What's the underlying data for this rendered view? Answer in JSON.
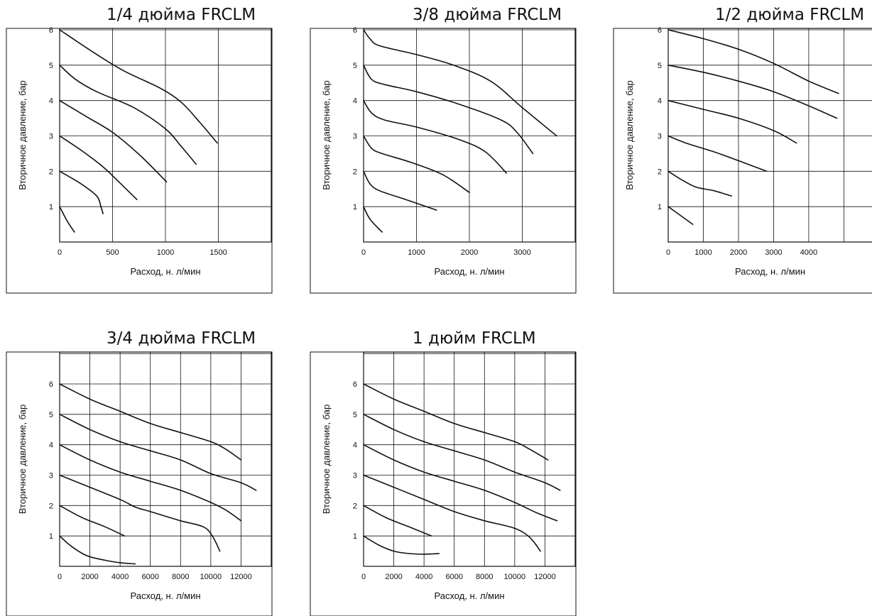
{
  "chart_data": [
    {
      "type": "line",
      "title": "1/4 дюйма FRCLM",
      "xlabel": "Расход, н. л/мин",
      "ylabel": "Вторичное давление, бар",
      "xlim": [
        0,
        2000
      ],
      "ylim": [
        0,
        6
      ],
      "x_ticks": [
        "0",
        "500",
        "1000",
        "1500"
      ],
      "y_ticks": [
        "1",
        "2",
        "3",
        "4",
        "5",
        "6"
      ],
      "grid": true,
      "series": [
        {
          "points": [
            [
              0,
              1.0
            ],
            [
              70,
              0.6
            ],
            [
              140,
              0.28
            ]
          ]
        },
        {
          "points": [
            [
              0,
              2.0
            ],
            [
              200,
              1.65
            ],
            [
              350,
              1.3
            ],
            [
              390,
              1.0
            ],
            [
              410,
              0.8
            ]
          ]
        },
        {
          "points": [
            [
              0,
              3.0
            ],
            [
              200,
              2.6
            ],
            [
              400,
              2.15
            ],
            [
              560,
              1.7
            ],
            [
              730,
              1.2
            ]
          ]
        },
        {
          "points": [
            [
              0,
              4.0
            ],
            [
              250,
              3.55
            ],
            [
              500,
              3.1
            ],
            [
              760,
              2.45
            ],
            [
              1010,
              1.7
            ]
          ]
        },
        {
          "points": [
            [
              0,
              5.0
            ],
            [
              150,
              4.6
            ],
            [
              350,
              4.25
            ],
            [
              700,
              3.8
            ],
            [
              1000,
              3.2
            ],
            [
              1150,
              2.7
            ],
            [
              1290,
              2.2
            ]
          ]
        },
        {
          "points": [
            [
              0,
              6.0
            ],
            [
              300,
              5.4
            ],
            [
              600,
              4.85
            ],
            [
              950,
              4.35
            ],
            [
              1150,
              3.95
            ],
            [
              1320,
              3.4
            ],
            [
              1490,
              2.8
            ]
          ]
        }
      ]
    },
    {
      "type": "line",
      "title": "3/8 дюйма FRCLM",
      "xlabel": "Расход, н. л/мин",
      "ylabel": "Вторичное давление, бар",
      "xlim": [
        0,
        4000
      ],
      "ylim": [
        0,
        6
      ],
      "x_ticks": [
        "0",
        "1000",
        "2000",
        "3000"
      ],
      "y_ticks": [
        "1",
        "2",
        "3",
        "4",
        "5",
        "6"
      ],
      "grid": true,
      "series": [
        {
          "points": [
            [
              0,
              1.0
            ],
            [
              120,
              0.65
            ],
            [
              350,
              0.28
            ]
          ]
        },
        {
          "points": [
            [
              0,
              2.0
            ],
            [
              120,
              1.65
            ],
            [
              300,
              1.45
            ],
            [
              800,
              1.2
            ],
            [
              1380,
              0.9
            ]
          ]
        },
        {
          "points": [
            [
              0,
              3.0
            ],
            [
              150,
              2.65
            ],
            [
              350,
              2.5
            ],
            [
              900,
              2.25
            ],
            [
              1500,
              1.9
            ],
            [
              2000,
              1.4
            ]
          ]
        },
        {
          "points": [
            [
              0,
              4.0
            ],
            [
              150,
              3.65
            ],
            [
              400,
              3.45
            ],
            [
              1000,
              3.25
            ],
            [
              1800,
              2.9
            ],
            [
              2300,
              2.55
            ],
            [
              2700,
              1.95
            ]
          ]
        },
        {
          "points": [
            [
              0,
              5.0
            ],
            [
              150,
              4.6
            ],
            [
              400,
              4.45
            ],
            [
              1000,
              4.25
            ],
            [
              1800,
              3.9
            ],
            [
              2600,
              3.45
            ],
            [
              2900,
              3.1
            ],
            [
              3200,
              2.5
            ]
          ]
        },
        {
          "points": [
            [
              0,
              6.0
            ],
            [
              120,
              5.75
            ],
            [
              300,
              5.55
            ],
            [
              1000,
              5.3
            ],
            [
              1700,
              5.0
            ],
            [
              2400,
              4.55
            ],
            [
              3000,
              3.8
            ],
            [
              3650,
              3.0
            ]
          ]
        }
      ]
    },
    {
      "type": "line",
      "title": "1/2 дюйма FRCLM",
      "xlabel": "Расход, н. л/мин",
      "ylabel": "Вторичное давление, бар",
      "xlim": [
        0,
        5800
      ],
      "ylim": [
        0,
        6
      ],
      "x_ticks": [
        "0",
        "1000",
        "2000",
        "3000",
        "4000"
      ],
      "y_ticks": [
        "1",
        "2",
        "3",
        "4",
        "5",
        "6"
      ],
      "grid": true,
      "series": [
        {
          "points": [
            [
              0,
              1.0
            ],
            [
              350,
              0.75
            ],
            [
              700,
              0.5
            ]
          ]
        },
        {
          "points": [
            [
              0,
              2.0
            ],
            [
              400,
              1.75
            ],
            [
              800,
              1.55
            ],
            [
              1300,
              1.45
            ],
            [
              1800,
              1.3
            ]
          ]
        },
        {
          "points": [
            [
              0,
              3.0
            ],
            [
              500,
              2.8
            ],
            [
              1300,
              2.55
            ],
            [
              2000,
              2.3
            ],
            [
              2800,
              2.0
            ]
          ]
        },
        {
          "points": [
            [
              0,
              4.0
            ],
            [
              1000,
              3.75
            ],
            [
              2000,
              3.5
            ],
            [
              3000,
              3.15
            ],
            [
              3650,
              2.8
            ]
          ]
        },
        {
          "points": [
            [
              0,
              5.0
            ],
            [
              1000,
              4.8
            ],
            [
              2000,
              4.55
            ],
            [
              3000,
              4.25
            ],
            [
              4000,
              3.85
            ],
            [
              4800,
              3.5
            ]
          ]
        },
        {
          "points": [
            [
              0,
              6.0
            ],
            [
              1000,
              5.75
            ],
            [
              2000,
              5.45
            ],
            [
              3000,
              5.05
            ],
            [
              4000,
              4.55
            ],
            [
              4850,
              4.2
            ]
          ]
        }
      ]
    },
    {
      "type": "line",
      "title": "3/4 дюйма FRCLM",
      "xlabel": "Расход, н. л/мин",
      "ylabel": "Вторичное давление, бар",
      "xlim": [
        0,
        14000
      ],
      "ylim": [
        0,
        7
      ],
      "x_ticks": [
        "0",
        "2000",
        "4000",
        "6000",
        "8000",
        "10000",
        "12000"
      ],
      "y_ticks": [
        "1",
        "2",
        "3",
        "4",
        "5",
        "6"
      ],
      "grid": true,
      "series": [
        {
          "points": [
            [
              0,
              1.0
            ],
            [
              800,
              0.65
            ],
            [
              1800,
              0.35
            ],
            [
              3000,
              0.2
            ],
            [
              4000,
              0.12
            ],
            [
              5000,
              0.08
            ]
          ]
        },
        {
          "points": [
            [
              0,
              2.0
            ],
            [
              1500,
              1.6
            ],
            [
              3000,
              1.3
            ],
            [
              4300,
              1.0
            ]
          ]
        },
        {
          "points": [
            [
              0,
              3.0
            ],
            [
              2000,
              2.6
            ],
            [
              4000,
              2.2
            ],
            [
              5000,
              1.95
            ],
            [
              6000,
              1.8
            ],
            [
              8000,
              1.5
            ],
            [
              9500,
              1.3
            ],
            [
              10100,
              1.0
            ],
            [
              10600,
              0.5
            ]
          ]
        },
        {
          "points": [
            [
              0,
              4.0
            ],
            [
              2000,
              3.5
            ],
            [
              4000,
              3.1
            ],
            [
              6000,
              2.8
            ],
            [
              8000,
              2.5
            ],
            [
              10000,
              2.1
            ],
            [
              11000,
              1.85
            ],
            [
              12000,
              1.5
            ]
          ]
        },
        {
          "points": [
            [
              0,
              5.0
            ],
            [
              2000,
              4.5
            ],
            [
              4000,
              4.1
            ],
            [
              6000,
              3.8
            ],
            [
              8000,
              3.5
            ],
            [
              10000,
              3.05
            ],
            [
              12000,
              2.75
            ],
            [
              13000,
              2.5
            ]
          ]
        },
        {
          "points": [
            [
              0,
              6.0
            ],
            [
              2000,
              5.5
            ],
            [
              4000,
              5.1
            ],
            [
              6000,
              4.7
            ],
            [
              8000,
              4.4
            ],
            [
              10000,
              4.1
            ],
            [
              11000,
              3.85
            ],
            [
              12000,
              3.5
            ]
          ]
        }
      ]
    },
    {
      "type": "line",
      "title": "1 дюйм FRCLM",
      "xlabel": "Расход, н. л/мин",
      "ylabel": "Вторичное давление, бар",
      "xlim": [
        0,
        14000
      ],
      "ylim": [
        0,
        7
      ],
      "x_ticks": [
        "0",
        "2000",
        "4000",
        "6000",
        "8000",
        "10000",
        "12000"
      ],
      "y_ticks": [
        "1",
        "2",
        "3",
        "4",
        "5",
        "6"
      ],
      "grid": true,
      "series": [
        {
          "points": [
            [
              0,
              1.0
            ],
            [
              1000,
              0.7
            ],
            [
              2000,
              0.5
            ],
            [
              3000,
              0.42
            ],
            [
              4000,
              0.4
            ],
            [
              5000,
              0.42
            ]
          ]
        },
        {
          "points": [
            [
              0,
              2.0
            ],
            [
              1500,
              1.6
            ],
            [
              3000,
              1.3
            ],
            [
              4500,
              1.0
            ]
          ]
        },
        {
          "points": [
            [
              0,
              3.0
            ],
            [
              2000,
              2.6
            ],
            [
              4000,
              2.2
            ],
            [
              6000,
              1.8
            ],
            [
              8000,
              1.5
            ],
            [
              10000,
              1.25
            ],
            [
              11000,
              0.95
            ],
            [
              11700,
              0.5
            ]
          ]
        },
        {
          "points": [
            [
              0,
              4.0
            ],
            [
              2000,
              3.5
            ],
            [
              4000,
              3.1
            ],
            [
              6000,
              2.8
            ],
            [
              8000,
              2.5
            ],
            [
              10000,
              2.1
            ],
            [
              11500,
              1.75
            ],
            [
              12800,
              1.5
            ]
          ]
        },
        {
          "points": [
            [
              0,
              5.0
            ],
            [
              2000,
              4.5
            ],
            [
              4000,
              4.1
            ],
            [
              6000,
              3.8
            ],
            [
              8000,
              3.5
            ],
            [
              10000,
              3.1
            ],
            [
              12000,
              2.75
            ],
            [
              13000,
              2.5
            ]
          ]
        },
        {
          "points": [
            [
              0,
              6.0
            ],
            [
              2000,
              5.5
            ],
            [
              4000,
              5.1
            ],
            [
              6000,
              4.7
            ],
            [
              8000,
              4.4
            ],
            [
              10000,
              4.1
            ],
            [
              11000,
              3.85
            ],
            [
              12200,
              3.5
            ]
          ]
        }
      ]
    }
  ]
}
